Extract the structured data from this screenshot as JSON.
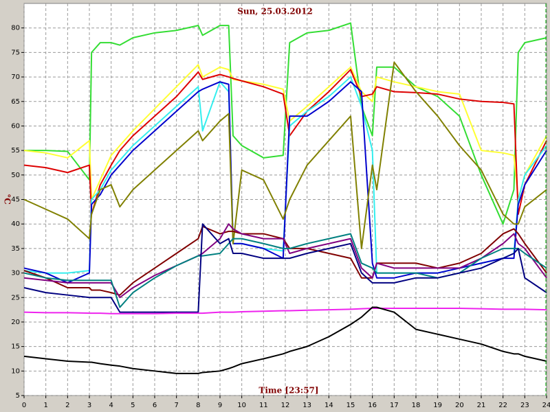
{
  "chart_data": {
    "type": "line",
    "title": "Sun, 25.03.2012",
    "x_label": "Time [23:57]",
    "y_label": "°C",
    "xlim": [
      0,
      24
    ],
    "ylim": [
      5,
      85
    ],
    "xticks": [
      0,
      1,
      2,
      3,
      4,
      5,
      6,
      7,
      8,
      9,
      10,
      11,
      12,
      13,
      14,
      15,
      16,
      17,
      18,
      19,
      20,
      21,
      22,
      23,
      24
    ],
    "yticks": [
      5,
      10,
      15,
      20,
      25,
      30,
      35,
      40,
      45,
      50,
      55,
      60,
      65,
      70,
      75,
      80
    ],
    "grid": true,
    "x": [
      0,
      1,
      2,
      3,
      3.1,
      3.5,
      4,
      4.4,
      5,
      6,
      7,
      8,
      8.2,
      9,
      9.4,
      9.6,
      10,
      11,
      11.9,
      12.2,
      13,
      14,
      15,
      15.5,
      16,
      16.2,
      17,
      18,
      19,
      20,
      21,
      22,
      22.5,
      22.7,
      23,
      24
    ],
    "series": [
      {
        "color": "#33dd33",
        "values": [
          55,
          55,
          54.8,
          49,
          75,
          77,
          77,
          76.5,
          78,
          79,
          79.5,
          80.5,
          78.5,
          80.5,
          80.5,
          58,
          56,
          53.5,
          54,
          77,
          79,
          79.5,
          81,
          64,
          58,
          72,
          72,
          68,
          66,
          62,
          50,
          40,
          47,
          75,
          77,
          78
        ]
      },
      {
        "color": "#ffff33",
        "values": [
          55,
          54.5,
          53.5,
          57,
          45,
          49,
          54,
          56,
          59,
          63.5,
          68,
          72.5,
          70,
          72,
          71.5,
          69.5,
          69.2,
          68.5,
          67.5,
          61,
          64,
          68,
          72,
          67,
          65,
          70,
          69,
          68,
          67,
          66.5,
          55,
          54.5,
          54,
          45,
          50,
          58
        ]
      },
      {
        "color": "#dd0000",
        "values": [
          52,
          51.5,
          50.5,
          52,
          42,
          48,
          52,
          55,
          58,
          62,
          66,
          71,
          69.5,
          70.5,
          70,
          69.7,
          69.2,
          68,
          66.5,
          58,
          63,
          67,
          71.5,
          66,
          66.5,
          68,
          67,
          66.8,
          66.5,
          65.5,
          65,
          64.8,
          64.5,
          42,
          48,
          57
        ]
      },
      {
        "color": "#33eeee",
        "values": [
          30.5,
          30,
          30,
          30.5,
          45,
          47,
          51,
          53,
          56,
          60,
          64,
          68,
          59,
          69,
          67,
          36,
          36,
          35,
          34.5,
          60,
          63,
          66,
          70,
          64,
          55,
          30,
          30,
          30,
          30,
          31,
          32,
          33,
          34,
          45,
          50,
          56
        ]
      },
      {
        "color": "#0000cc",
        "values": [
          31,
          30,
          28,
          30,
          44,
          46,
          50,
          52,
          55,
          59,
          63,
          67,
          67.5,
          69,
          68.5,
          36,
          36,
          35,
          33,
          62,
          62,
          65,
          69,
          67,
          32,
          29,
          29,
          30,
          30,
          31,
          32,
          33,
          33,
          44,
          48,
          55
        ]
      },
      {
        "color": "#808000",
        "values": [
          45,
          43,
          41,
          37,
          42,
          47,
          48,
          43.5,
          47,
          51,
          55,
          59,
          57,
          61,
          62.5,
          36,
          51,
          49,
          41,
          45,
          52,
          57,
          62,
          35,
          52,
          47,
          73,
          67,
          62,
          56,
          51,
          42,
          40,
          40,
          43.5,
          47
        ]
      },
      {
        "color": "#800000",
        "values": [
          30.5,
          29,
          27,
          27,
          26.5,
          26.5,
          26,
          25.5,
          28,
          31,
          34,
          37,
          39.5,
          38,
          38.5,
          38.5,
          38,
          38,
          37,
          35,
          35,
          34,
          33,
          29,
          29,
          32,
          32,
          32,
          31,
          32,
          34,
          38,
          39,
          38,
          36,
          30
        ]
      },
      {
        "color": "#800080",
        "values": [
          29,
          28.5,
          28,
          28,
          28,
          28,
          28,
          25,
          27,
          29.5,
          31.5,
          33.5,
          34,
          37,
          40,
          39,
          38,
          37,
          37,
          34,
          35,
          36,
          37,
          31,
          29,
          32,
          31,
          31,
          31,
          31,
          33,
          36,
          38,
          36,
          35,
          29
        ]
      },
      {
        "color": "#008080",
        "values": [
          30,
          29,
          28.5,
          28.5,
          28.5,
          28.5,
          28.5,
          23,
          26,
          29,
          31.5,
          33.5,
          33.5,
          34,
          36,
          37,
          37,
          36,
          35,
          35,
          36,
          37,
          38,
          32,
          31,
          30,
          30,
          30,
          29,
          30,
          33,
          35,
          35,
          35,
          34,
          31
        ]
      },
      {
        "color": "#000080",
        "values": [
          27,
          26,
          25.5,
          25,
          25,
          25,
          25,
          22,
          22,
          22,
          22,
          22,
          40,
          36,
          37,
          34,
          34,
          33,
          33,
          33,
          34,
          35,
          36,
          30,
          28,
          28,
          28,
          29,
          29,
          30,
          31,
          33,
          34,
          35,
          29,
          26
        ]
      },
      {
        "color": "#ee22ee",
        "values": [
          22,
          21.9,
          21.9,
          21.8,
          21.8,
          21.8,
          21.7,
          21.7,
          21.7,
          21.7,
          21.8,
          21.8,
          21.8,
          22,
          22,
          22,
          22.1,
          22.2,
          22.3,
          22.3,
          22.4,
          22.5,
          22.6,
          22.7,
          22.8,
          22.8,
          22.8,
          22.8,
          22.8,
          22.8,
          22.7,
          22.6,
          22.6,
          22.6,
          22.6,
          22.5
        ]
      },
      {
        "color": "#000000",
        "values": [
          13,
          12.5,
          12,
          11.8,
          11.8,
          11.5,
          11.2,
          11,
          10.5,
          10,
          9.5,
          9.5,
          9.7,
          10,
          10.5,
          10.8,
          11.5,
          12.5,
          13.5,
          14,
          15,
          17,
          19.5,
          21,
          23,
          23,
          22,
          18.5,
          17.5,
          16.5,
          15.5,
          14,
          13.5,
          13.5,
          13,
          12
        ]
      }
    ]
  }
}
